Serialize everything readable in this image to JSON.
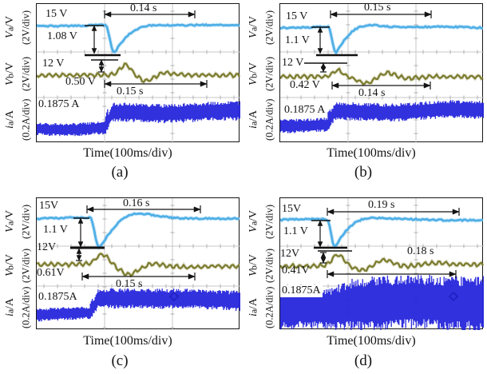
{
  "axis": {
    "rows": [
      {
        "sym": "V",
        "sub": "a",
        "rest": "/V",
        "scale": "(2V/div)"
      },
      {
        "sym": "V",
        "sub": "b",
        "rest": "/V",
        "scale": "(2V/div)"
      },
      {
        "sym": "i",
        "sub": "a",
        "rest": "/A",
        "scale": "(0.2A/div)"
      }
    ]
  },
  "panels": [
    {
      "id": "a",
      "caption": "(a)",
      "xlabel": "Time(100ms/div)",
      "labels": {
        "va_level": "15 V",
        "va_sag": "1.08 V",
        "va_time": "0.14 s",
        "vb_level": "12 V",
        "vb_dev": "0.50 V",
        "vb_time": "0.15 s",
        "ia_level": "0.1875 A"
      }
    },
    {
      "id": "b",
      "caption": "(b)",
      "xlabel": "Time(100ms/div)",
      "labels": {
        "va_level": "15 V",
        "va_sag": "1.1 V",
        "va_time": "0.15 s",
        "vb_level": "12 V",
        "vb_dev": "0.42 V",
        "vb_time": "0.14 s",
        "ia_level": "0.1875 A"
      }
    },
    {
      "id": "c",
      "caption": "(c)",
      "xlabel": "Time(100ms/div)",
      "labels": {
        "va_level": "15V",
        "va_sag": "1.1 V",
        "va_time": "0.16 s",
        "vb_level": "12V",
        "vb_dev": "0.61V",
        "vb_time": "0.15 s",
        "ia_level": "0.1875A"
      }
    },
    {
      "id": "d",
      "caption": "(d)",
      "xlabel": "Time(100ms/div)",
      "labels": {
        "va_level": "15V",
        "va_sag": "1.1 V",
        "va_time": "0.19 s",
        "vb_level": "12V",
        "vb_dev": "0.41V",
        "vb_time": "0.18 s",
        "ia_level": "0.1875A"
      }
    }
  ],
  "colors": {
    "va_trace": "#4fafe6",
    "vb_trace": "#7b7b2d",
    "ia_trace": "#2626dc",
    "grid": "#c7c7c7",
    "grid_tick": "#b2b2b2",
    "annotation": "#141414",
    "border": "#161616",
    "cursor_marker": "#1b1bb8"
  },
  "chart_data": [
    {
      "panel": "a",
      "type": "line",
      "xlabel": "Time(100ms/div)",
      "time_per_div": "100ms",
      "x_divisions": 3,
      "grid": true,
      "series": [
        {
          "name": "Va",
          "unit": "V",
          "scale_per_div": "2V/div",
          "steady_level": 15,
          "sag": 1.08,
          "recovery_time_s": 0.14,
          "shape": "flat, dips 1.08 V at load step, recovers in 0.14 s"
        },
        {
          "name": "Vb",
          "unit": "V",
          "scale_per_div": "2V/div",
          "steady_level": 12,
          "deviation": 0.5,
          "settling_time_s": 0.15,
          "shape": "ripple around 12 V, 0.50 V transient bump then settles in 0.15 s"
        },
        {
          "name": "ia",
          "unit": "A",
          "scale_per_div": "0.2A/div",
          "marked_level": 0.1875,
          "shape": "noisy band, steps up at transient"
        }
      ]
    },
    {
      "panel": "b",
      "type": "line",
      "xlabel": "Time(100ms/div)",
      "time_per_div": "100ms",
      "x_divisions": 3,
      "grid": true,
      "series": [
        {
          "name": "Va",
          "unit": "V",
          "scale_per_div": "2V/div",
          "steady_level": 15,
          "sag": 1.1,
          "recovery_time_s": 0.15,
          "shape": "flat, dips 1.1 V at load step, recovers in 0.15 s"
        },
        {
          "name": "Vb",
          "unit": "V",
          "scale_per_div": "2V/div",
          "steady_level": 12,
          "deviation": 0.42,
          "settling_time_s": 0.14,
          "shape": "ripple around 12 V, 0.42 V transient then settles in 0.14 s"
        },
        {
          "name": "ia",
          "unit": "A",
          "scale_per_div": "0.2A/div",
          "marked_level": 0.1875,
          "shape": "noisy band, steps up at transient"
        }
      ]
    },
    {
      "panel": "c",
      "type": "line",
      "xlabel": "Time(100ms/div)",
      "time_per_div": "100ms",
      "x_divisions": 3,
      "grid": true,
      "series": [
        {
          "name": "Va",
          "unit": "V",
          "scale_per_div": "2V/div",
          "steady_level": 15,
          "sag": 1.1,
          "recovery_time_s": 0.16,
          "shape": "flat, dips 1.1 V at load step, recovers with overshoot in 0.16 s"
        },
        {
          "name": "Vb",
          "unit": "V",
          "scale_per_div": "2V/div",
          "steady_level": 12,
          "deviation": 0.61,
          "settling_time_s": 0.15,
          "shape": "ripple around 12 V, 0.61 V transient swing then settles in 0.15 s"
        },
        {
          "name": "ia",
          "unit": "A",
          "scale_per_div": "0.2A/div",
          "marked_level": 0.1875,
          "shape": "noisy band, steps up at transient, diamond cursor marker"
        }
      ]
    },
    {
      "panel": "d",
      "type": "line",
      "xlabel": "Time(100ms/div)",
      "time_per_div": "100ms",
      "x_divisions": 3,
      "grid": true,
      "series": [
        {
          "name": "Va",
          "unit": "V",
          "scale_per_div": "2V/div",
          "steady_level": 15,
          "sag": 1.1,
          "recovery_time_s": 0.19,
          "shape": "flat, dips 1.1 V at load step, recovers in 0.19 s"
        },
        {
          "name": "Vb",
          "unit": "V",
          "scale_per_div": "2V/div",
          "steady_level": 12,
          "deviation": 0.41,
          "settling_time_s": 0.18,
          "shape": "ripple around 12 V, 0.41 V transient then settles in 0.18 s"
        },
        {
          "name": "ia",
          "unit": "A",
          "scale_per_div": "0.2A/div",
          "marked_level": 0.1875,
          "shape": "very wide noisy band, widens further after transient, diamond cursor marker"
        }
      ]
    }
  ]
}
